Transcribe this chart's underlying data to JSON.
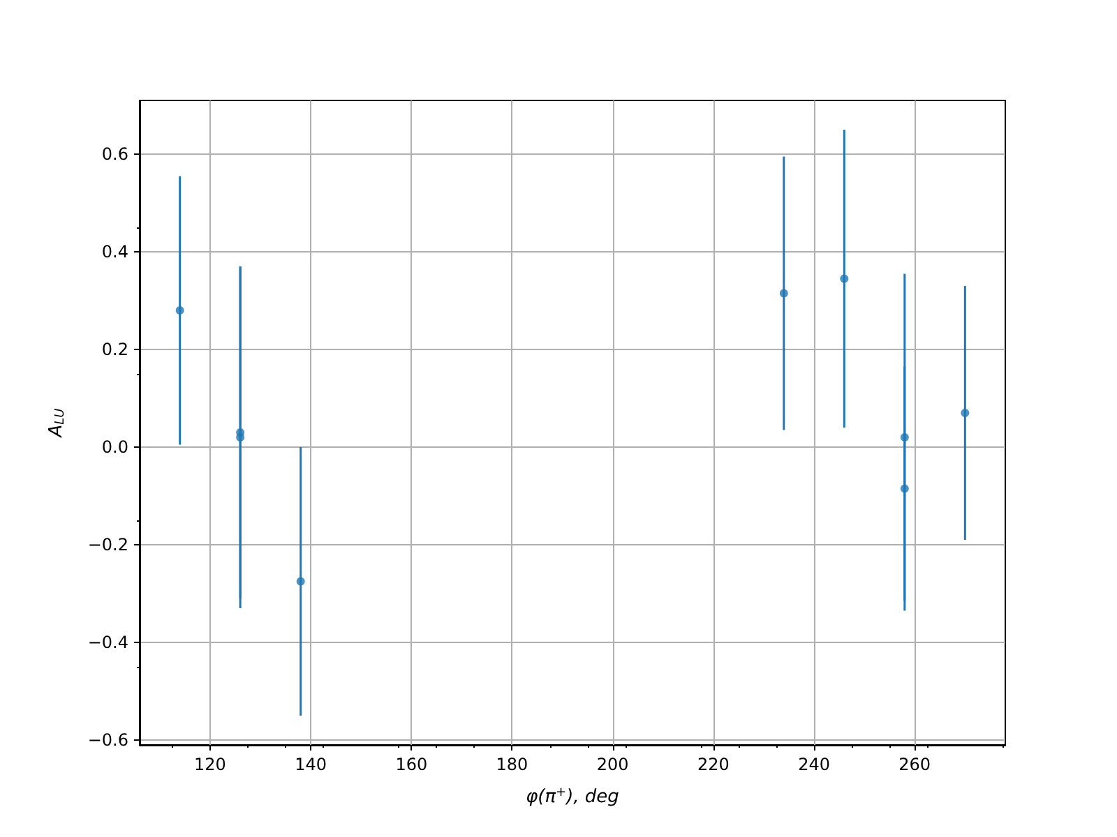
{
  "chart_data": {
    "type": "scatter",
    "xlabel": "φ(π$^{+}$), deg",
    "ylabel": "A$_{LU}$",
    "x": [
      114,
      126,
      126,
      138,
      234,
      246,
      258,
      258,
      270
    ],
    "values": [
      0.28,
      0.03,
      0.02,
      -0.275,
      0.315,
      0.345,
      0.02,
      -0.085,
      0.07
    ],
    "errors": [
      0.275,
      0.34,
      0.35,
      0.275,
      0.28,
      0.305,
      0.335,
      0.25,
      0.26
    ],
    "color": "#1f77b4",
    "marker": "circle",
    "xlim": [
      106,
      278
    ],
    "xticks": [
      120,
      140,
      160,
      180,
      200,
      220,
      240,
      260
    ],
    "ylim": [
      -0.61,
      0.71
    ],
    "yticks": [
      {
        "value": -0.6,
        "label": "−0.6"
      },
      {
        "value": -0.4,
        "label": "−0.4"
      },
      {
        "value": -0.2,
        "label": "−0.2"
      },
      {
        "value": 0,
        "label": "0.0"
      },
      {
        "value": 0.2,
        "label": "0.2"
      },
      {
        "value": 0.4,
        "label": "0.4"
      },
      {
        "value": 0.6,
        "label": "0.6"
      }
    ],
    "grid": true
  }
}
